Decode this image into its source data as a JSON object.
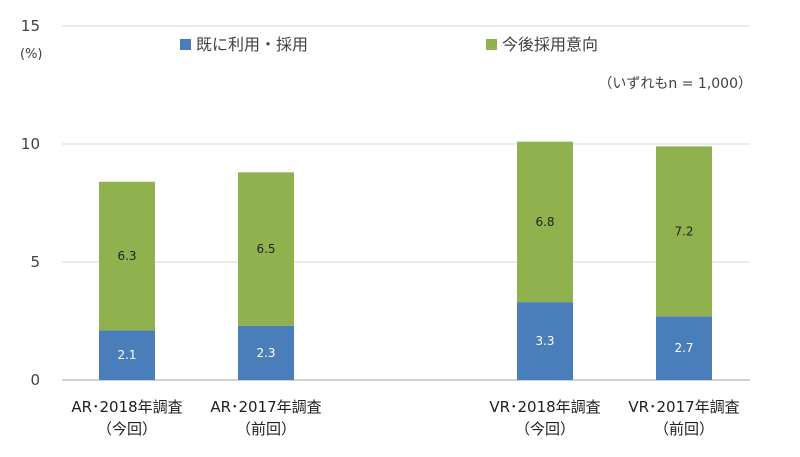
{
  "chart_data": {
    "type": "bar",
    "stacked": true,
    "categories": [
      [
        "AR･2018年調査",
        "（今回）"
      ],
      [
        "AR･2017年調査",
        "（前回）"
      ],
      [
        "VR･2018年調査",
        "（今回）"
      ],
      [
        "VR･2017年調査",
        "（前回）"
      ]
    ],
    "series": [
      {
        "name": "既に利用・採用",
        "color": "#4a7ebb",
        "label_color": "#ffffff",
        "values": [
          2.1,
          2.3,
          3.3,
          2.7
        ]
      },
      {
        "name": "今後採用意向",
        "color": "#8fb24f",
        "label_color": "#222222",
        "values": [
          6.3,
          6.5,
          6.8,
          7.2
        ]
      }
    ],
    "ylim": [
      0,
      15
    ],
    "yticks": [
      0,
      5,
      10,
      15
    ],
    "y_unit": "(%)",
    "note": "（いずれもn = 1,000）",
    "legend_position": "top",
    "grid": true
  }
}
